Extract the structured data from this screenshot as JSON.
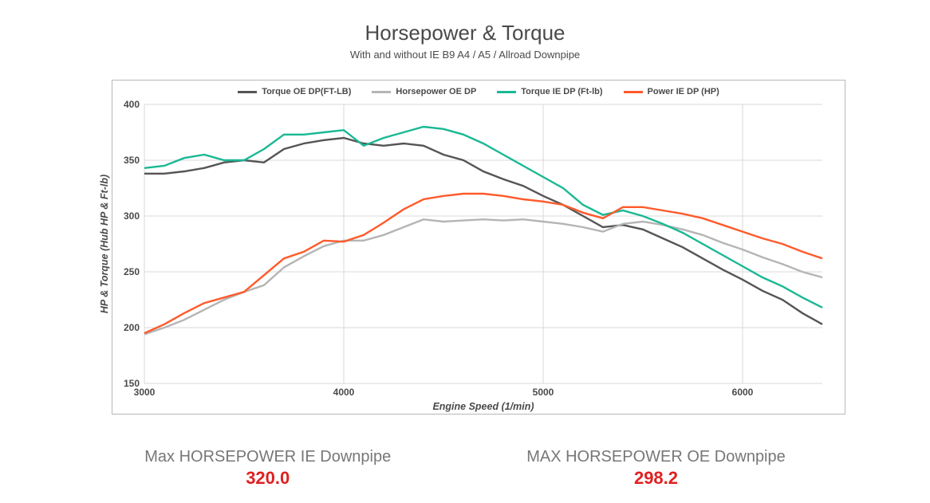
{
  "title": "Horsepower & Torque",
  "subtitle": "With and without IE B9 A4 / A5 / Allroad Downpipe",
  "chart": {
    "type": "line",
    "x_axis": {
      "label": "Engine Speed (1/min)",
      "min": 3000,
      "max": 6400,
      "ticks": [
        3000,
        4000,
        5000,
        6000
      ],
      "label_fontsize": 12.5,
      "tick_fontsize": 12
    },
    "y_axis": {
      "label": "HP & Torque (Hub HP & Ft-lb)",
      "min": 150,
      "max": 400,
      "ticks": [
        150,
        200,
        250,
        300,
        350,
        400
      ],
      "label_fontsize": 12.5,
      "tick_fontsize": 12
    },
    "background_color": "#ffffff",
    "border_color": "#b8b8b8",
    "grid_color": "#d9d9d9",
    "line_width": 2.4,
    "series": [
      {
        "name": "Torque OE DP(FT-LB)",
        "color": "#555555",
        "x": [
          3000,
          3100,
          3200,
          3300,
          3400,
          3500,
          3600,
          3700,
          3800,
          3900,
          4000,
          4100,
          4200,
          4300,
          4400,
          4500,
          4600,
          4700,
          4800,
          4900,
          5000,
          5100,
          5200,
          5300,
          5400,
          5500,
          5600,
          5700,
          5800,
          5900,
          6000,
          6100,
          6200,
          6300,
          6400
        ],
        "y": [
          338,
          338,
          340,
          343,
          348,
          350,
          348,
          360,
          365,
          368,
          370,
          365,
          363,
          365,
          363,
          355,
          350,
          340,
          333,
          327,
          318,
          310,
          300,
          290,
          292,
          288,
          280,
          272,
          262,
          252,
          243,
          233,
          225,
          213,
          203
        ]
      },
      {
        "name": "Horsepower OE DP",
        "color": "#b5b5b5",
        "x": [
          3000,
          3100,
          3200,
          3300,
          3400,
          3500,
          3600,
          3700,
          3800,
          3900,
          4000,
          4100,
          4200,
          4300,
          4400,
          4500,
          4600,
          4700,
          4800,
          4900,
          5000,
          5100,
          5200,
          5300,
          5400,
          5500,
          5600,
          5700,
          5800,
          5900,
          6000,
          6100,
          6200,
          6300,
          6400
        ],
        "y": [
          194,
          200,
          207,
          216,
          225,
          232,
          238,
          254,
          264,
          273,
          278,
          278,
          283,
          290,
          297,
          295,
          296,
          297,
          296,
          297,
          295,
          293,
          290,
          286,
          293,
          295,
          292,
          288,
          283,
          276,
          270,
          263,
          257,
          250,
          245
        ]
      },
      {
        "name": "Torque IE DP (Ft-lb)",
        "color": "#1ab894",
        "x": [
          3000,
          3100,
          3200,
          3300,
          3400,
          3500,
          3600,
          3700,
          3800,
          3900,
          4000,
          4100,
          4200,
          4300,
          4400,
          4500,
          4600,
          4700,
          4800,
          4900,
          5000,
          5100,
          5200,
          5300,
          5400,
          5500,
          5600,
          5700,
          5800,
          5900,
          6000,
          6100,
          6200,
          6300,
          6400
        ],
        "y": [
          343,
          345,
          352,
          355,
          350,
          350,
          360,
          373,
          373,
          375,
          377,
          363,
          370,
          375,
          380,
          378,
          373,
          365,
          355,
          345,
          335,
          325,
          310,
          301,
          305,
          300,
          293,
          285,
          275,
          265,
          255,
          245,
          237,
          227,
          218
        ]
      },
      {
        "name": "Power IE DP (HP)",
        "color": "#ff5a2b",
        "x": [
          3000,
          3100,
          3200,
          3300,
          3400,
          3500,
          3600,
          3700,
          3800,
          3900,
          4000,
          4100,
          4200,
          4300,
          4400,
          4500,
          4600,
          4700,
          4800,
          4900,
          5000,
          5100,
          5200,
          5300,
          5400,
          5500,
          5600,
          5700,
          5800,
          5900,
          6000,
          6100,
          6200,
          6300,
          6400
        ],
        "y": [
          195,
          203,
          213,
          222,
          227,
          232,
          247,
          262,
          268,
          278,
          277,
          283,
          294,
          306,
          315,
          318,
          320,
          320,
          318,
          315,
          313,
          310,
          303,
          298,
          308,
          308,
          305,
          302,
          298,
          292,
          286,
          280,
          275,
          268,
          262
        ]
      }
    ],
    "legend_items": [
      {
        "label": "Torque OE DP(FT-LB)",
        "color": "#555555"
      },
      {
        "label": "Horsepower OE DP",
        "color": "#b5b5b5"
      },
      {
        "label": "Torque IE DP (Ft-lb)",
        "color": "#1ab894"
      },
      {
        "label": "Power IE DP (HP)",
        "color": "#ff5a2b"
      }
    ]
  },
  "stats": {
    "left": {
      "label": "Max HORSEPOWER IE Downpipe",
      "value": "320.0",
      "value_color": "#e02020"
    },
    "right": {
      "label": "MAX HORSEPOWER OE Downpipe",
      "value": "298.2",
      "value_color": "#e02020"
    }
  }
}
